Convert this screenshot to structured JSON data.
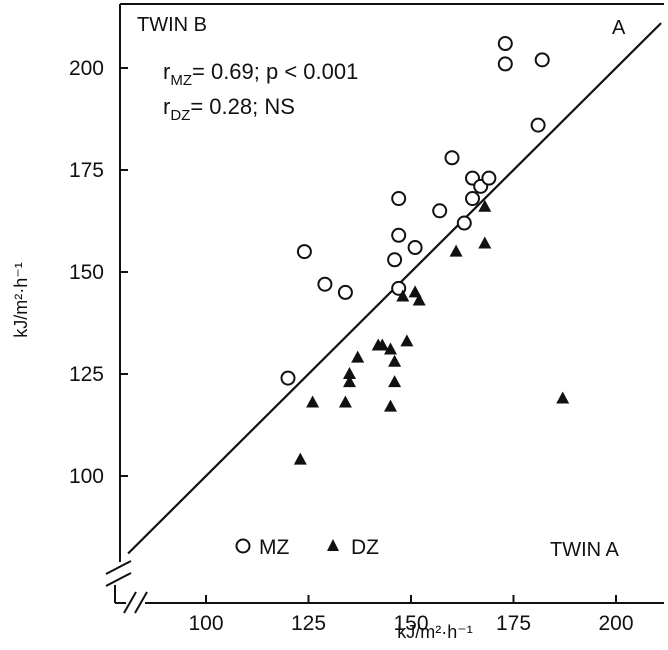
{
  "chart_data": {
    "type": "scatter",
    "xlabel": "kJ/m²·h⁻¹",
    "ylabel": "kJ/m²·h⁻¹",
    "x_ticks": [
      "100",
      "125",
      "150",
      "175",
      "200"
    ],
    "y_ticks": [
      "100",
      "125",
      "150",
      "175",
      "200"
    ],
    "xlim": [
      80,
      210
    ],
    "ylim": [
      84,
      216
    ],
    "corner_labels": {
      "top_left": "TWIN B",
      "top_right": "A",
      "bottom_right": "TWIN A"
    },
    "stats": {
      "mz": {
        "r": "r",
        "sub": "MZ",
        "text": "= 0.69; p < 0.001"
      },
      "dz": {
        "r": "r",
        "sub": "DZ",
        "text": "= 0.28; NS"
      }
    },
    "identity_line": true,
    "grid": false,
    "series": [
      {
        "name": "MZ",
        "marker": "open-circle",
        "points": [
          [
            120,
            124
          ],
          [
            124,
            155
          ],
          [
            129,
            147
          ],
          [
            134,
            145
          ],
          [
            146,
            153
          ],
          [
            147,
            146
          ],
          [
            147,
            168
          ],
          [
            147,
            159
          ],
          [
            151,
            156
          ],
          [
            157,
            165
          ],
          [
            160,
            178
          ],
          [
            163,
            162
          ],
          [
            165,
            168
          ],
          [
            165,
            173
          ],
          [
            167,
            171
          ],
          [
            169,
            173
          ],
          [
            173,
            201
          ],
          [
            173,
            206
          ],
          [
            181,
            186
          ],
          [
            182,
            202
          ]
        ]
      },
      {
        "name": "DZ",
        "marker": "filled-triangle",
        "points": [
          [
            123,
            104
          ],
          [
            126,
            118
          ],
          [
            134,
            118
          ],
          [
            135,
            123
          ],
          [
            135,
            125
          ],
          [
            137,
            129
          ],
          [
            142,
            132
          ],
          [
            143,
            132
          ],
          [
            145,
            131
          ],
          [
            145,
            117
          ],
          [
            146,
            128
          ],
          [
            146,
            123
          ],
          [
            148,
            144
          ],
          [
            149,
            133
          ],
          [
            151,
            145
          ],
          [
            152,
            143
          ],
          [
            161,
            155
          ],
          [
            168,
            166
          ],
          [
            168,
            157
          ],
          [
            187,
            119
          ]
        ]
      }
    ]
  }
}
